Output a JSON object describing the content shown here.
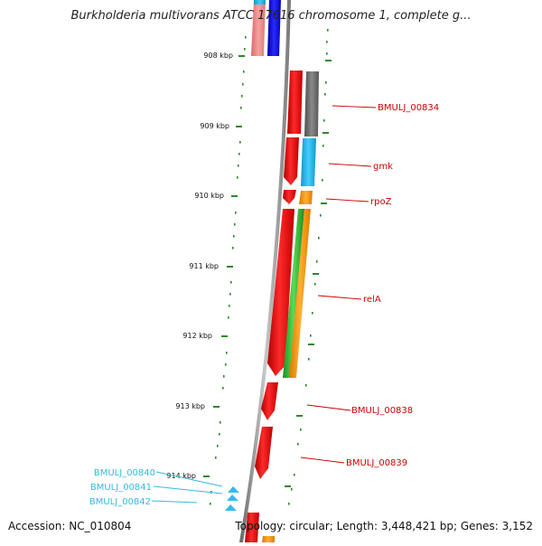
{
  "header": {
    "title": "Burkholderia multivorans ATCC 17616 chromosome 1, complete g..."
  },
  "footer": {
    "accession": "Accession: NC_010804",
    "summary": "Topology: circular; Length: 3,448,421 bp; Genes: 3,152"
  },
  "map": {
    "scale_labels": [
      "908 kbp",
      "909 kbp",
      "910 kbp",
      "911 kbp",
      "912 kbp",
      "913 kbp",
      "914 kbp"
    ],
    "gene_labels": [
      {
        "text": "BMULJ_00834",
        "color": "#cc0000"
      },
      {
        "text": "gmk",
        "color": "#cc0000"
      },
      {
        "text": "rpoZ",
        "color": "#cc0000"
      },
      {
        "text": "relA",
        "color": "#cc0000"
      },
      {
        "text": "BMULJ_00838",
        "color": "#cc0000"
      },
      {
        "text": "BMULJ_00839",
        "color": "#cc0000"
      },
      {
        "text": "BMULJ_00840",
        "color": "#33bbdd"
      },
      {
        "text": "BMULJ_00841",
        "color": "#33bbdd"
      },
      {
        "text": "BMULJ_00842",
        "color": "#33bbdd"
      }
    ],
    "colors": {
      "backbone": "#8a8a8a",
      "scale_tick": "#2a8a2a",
      "gene_red": "#ee0000",
      "gene_blue": "#0000ee",
      "gene_pink": "#f08888",
      "gene_gray": "#6e6e6e",
      "gene_cyan": "#22bbee",
      "gene_orange": "#ff9900",
      "gene_green": "#33bb33"
    }
  }
}
